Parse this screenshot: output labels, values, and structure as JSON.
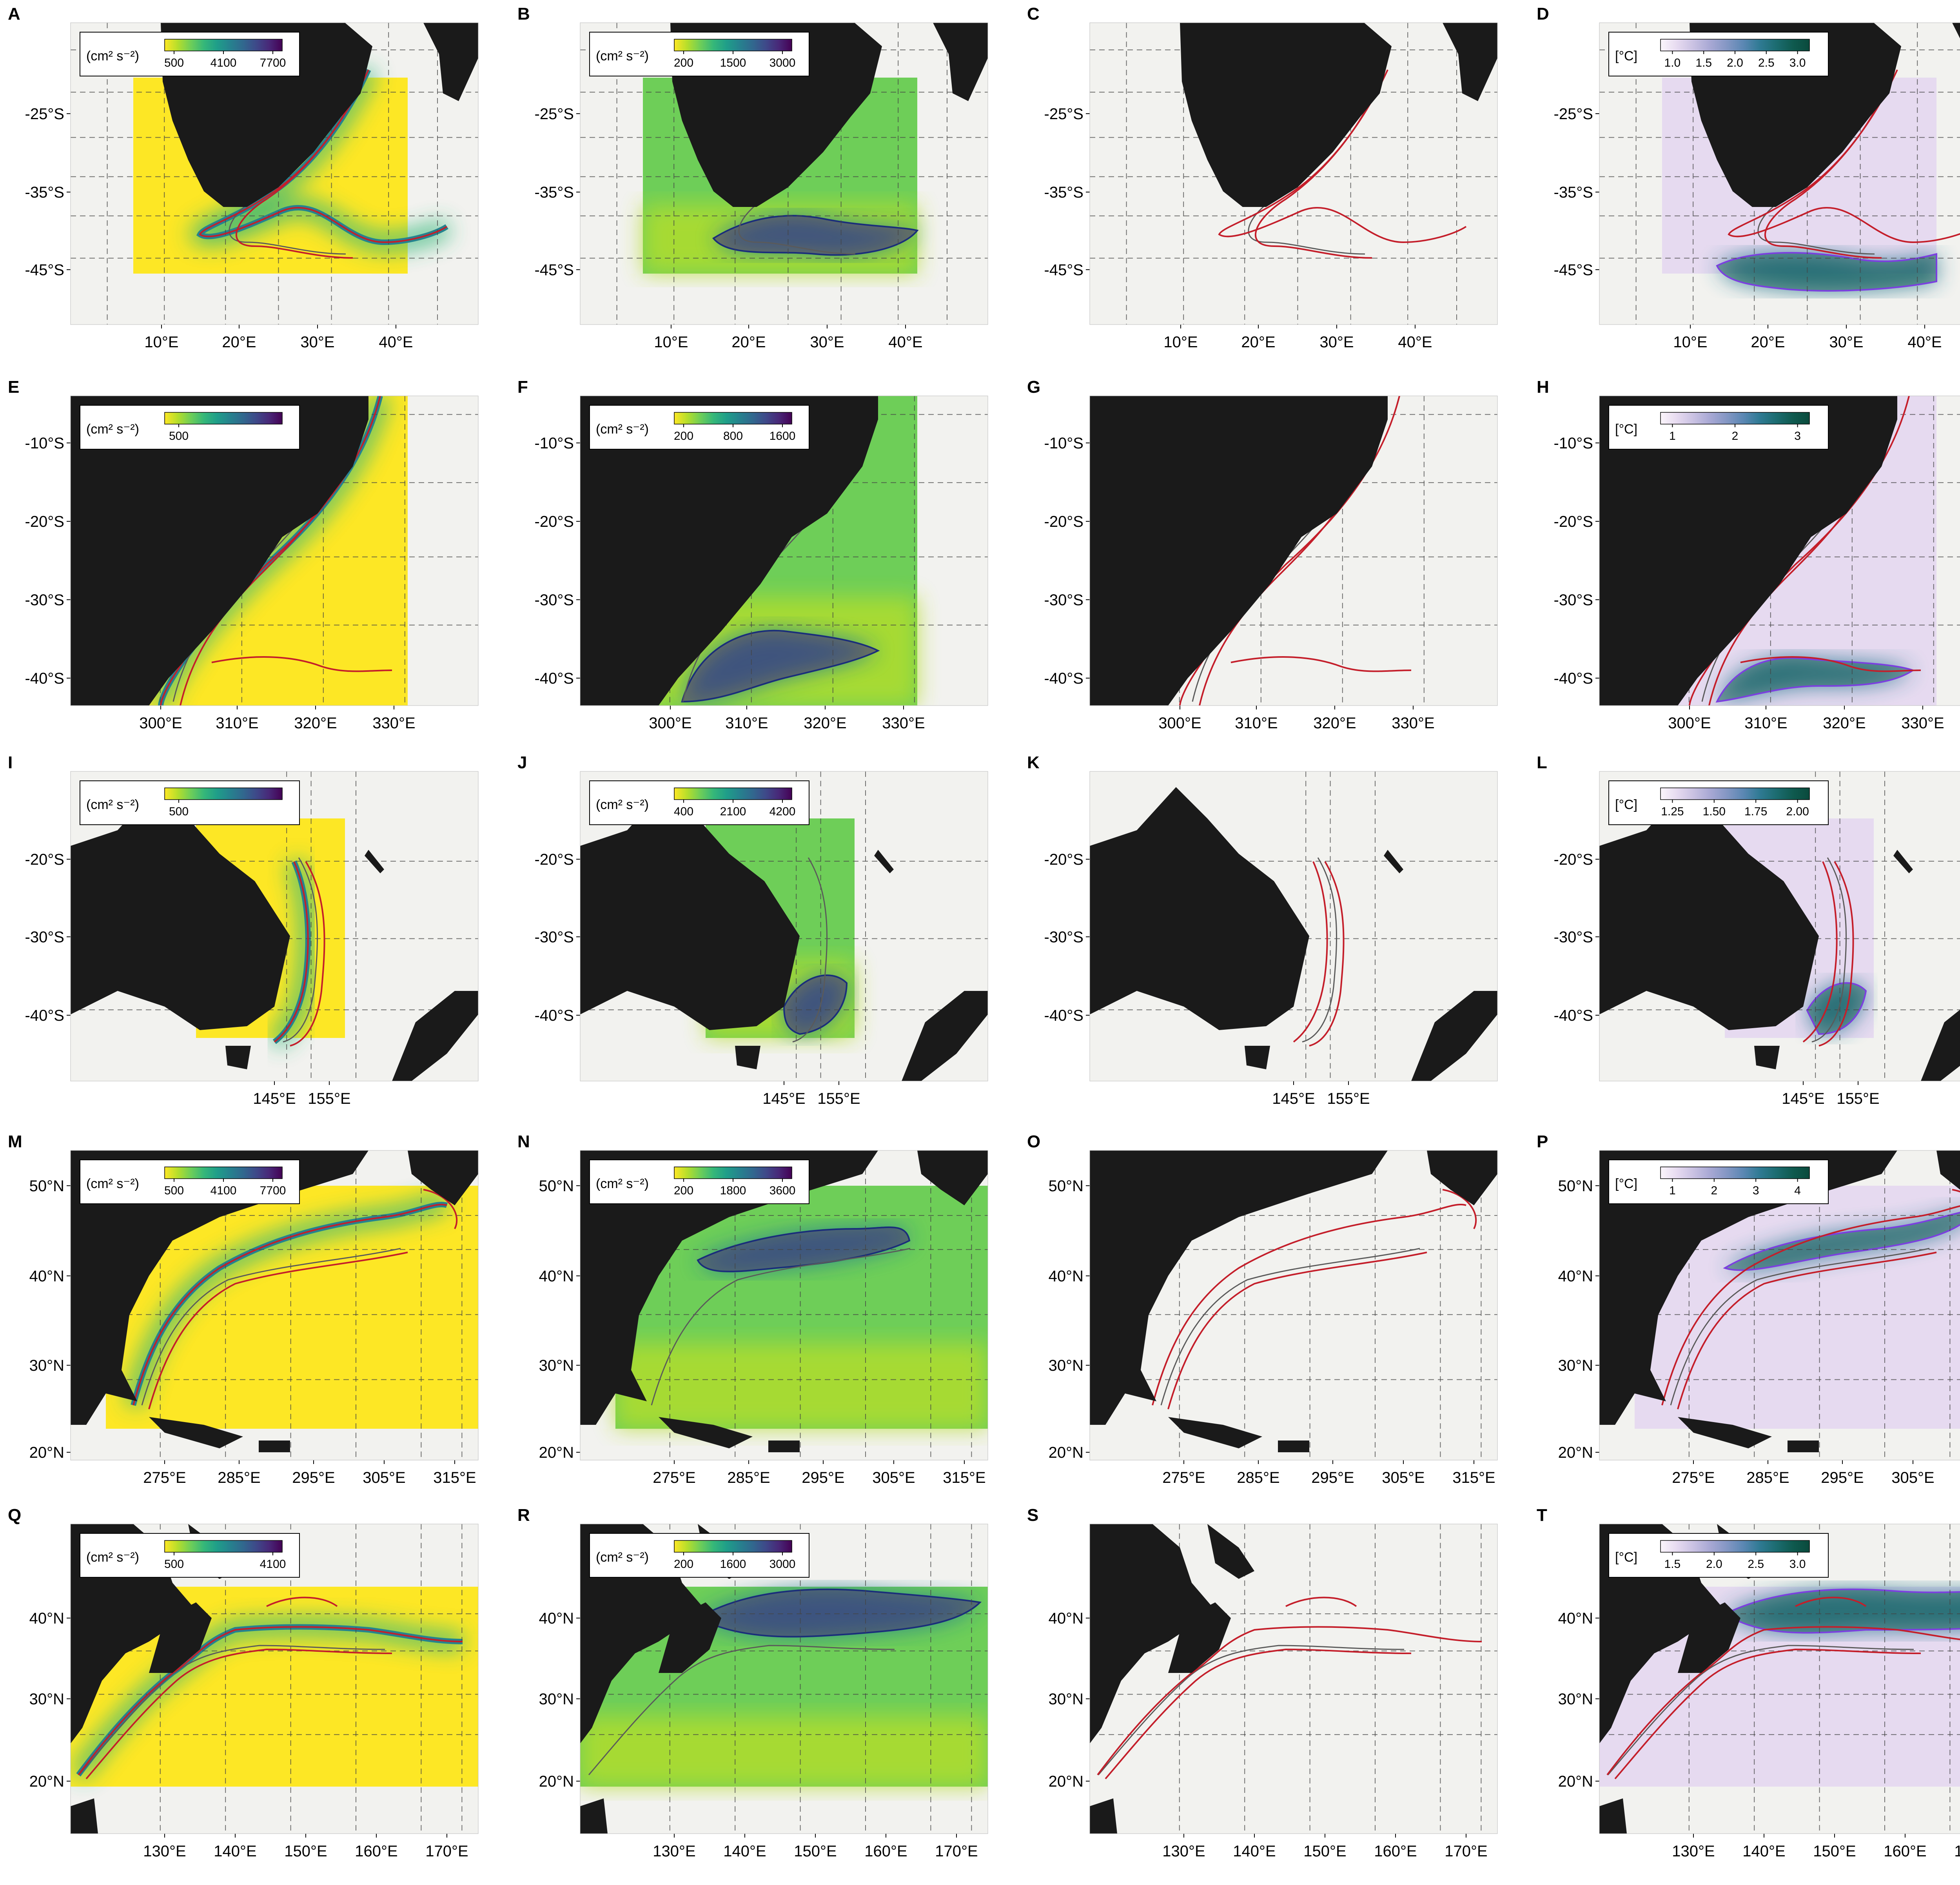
{
  "colors": {
    "background": "#f2f2ef",
    "land": "#1a1a1a",
    "contour_red": "#c41e2a",
    "contour_blue": "#1a2e7a",
    "contour_purple": "#7b3fe0",
    "contour_gray": "#5a5a5a",
    "viridis": [
      "#fde725",
      "#b5de2b",
      "#6ece58",
      "#35b779",
      "#1f9e89",
      "#26828e",
      "#31688e",
      "#3e4989",
      "#482878",
      "#440154"
    ],
    "purples_green": [
      "#fbf5fb",
      "#e6daf0",
      "#c9c1e2",
      "#a8a8d4",
      "#8497c4",
      "#5b87b3",
      "#2f7a93",
      "#1c6c70",
      "#0f5a4f",
      "#0a4a3c"
    ]
  },
  "regions": [
    {
      "id": "agulhas",
      "lat_ticks": [
        "-25°S",
        "-35°S",
        "-45°S"
      ],
      "lon_ticks": [
        "10°E",
        "20°E",
        "30°E",
        "40°E"
      ],
      "panels": [
        {
          "letter": "A",
          "variable": "eke",
          "legend_title": "(cm² s⁻²)",
          "legend_ticks": [
            "500",
            "4100",
            "7700"
          ]
        },
        {
          "letter": "B",
          "variable": "eke_blend",
          "legend_title": "(cm² s⁻²)",
          "legend_ticks": [
            "200",
            "1500",
            "3000"
          ]
        },
        {
          "letter": "C",
          "variable": "contours",
          "legend_title": "",
          "legend_ticks": []
        },
        {
          "letter": "D",
          "variable": "temp",
          "legend_title": "[°C]",
          "legend_ticks": [
            "1.0",
            "1.5",
            "2.0",
            "2.5",
            "3.0"
          ]
        }
      ]
    },
    {
      "id": "brazil-malvinas",
      "lat_ticks": [
        "-10°S",
        "-20°S",
        "-30°S",
        "-40°S"
      ],
      "lon_ticks": [
        "300°E",
        "310°E",
        "320°E",
        "330°E"
      ],
      "panels": [
        {
          "letter": "E",
          "variable": "eke",
          "legend_title": "(cm² s⁻²)",
          "legend_ticks": [
            "500"
          ]
        },
        {
          "letter": "F",
          "variable": "eke_blend",
          "legend_title": "(cm² s⁻²)",
          "legend_ticks": [
            "200",
            "800",
            "1600"
          ]
        },
        {
          "letter": "G",
          "variable": "contours",
          "legend_title": "",
          "legend_ticks": []
        },
        {
          "letter": "H",
          "variable": "temp",
          "legend_title": "[°C]",
          "legend_ticks": [
            "1",
            "2",
            "3"
          ]
        }
      ]
    },
    {
      "id": "east-australian",
      "lat_ticks": [
        "-20°S",
        "-30°S",
        "-40°S"
      ],
      "lon_ticks": [
        "145°E",
        "155°E"
      ],
      "panels": [
        {
          "letter": "I",
          "variable": "eke",
          "legend_title": "(cm² s⁻²)",
          "legend_ticks": [
            "500"
          ]
        },
        {
          "letter": "J",
          "variable": "eke_blend",
          "legend_title": "(cm² s⁻²)",
          "legend_ticks": [
            "400",
            "2100",
            "4200"
          ]
        },
        {
          "letter": "K",
          "variable": "contours",
          "legend_title": "",
          "legend_ticks": []
        },
        {
          "letter": "L",
          "variable": "temp",
          "legend_title": "[°C]",
          "legend_ticks": [
            "1.25",
            "1.50",
            "1.75",
            "2.00"
          ]
        }
      ]
    },
    {
      "id": "gulf-stream",
      "lat_ticks": [
        "50°N",
        "40°N",
        "30°N",
        "20°N"
      ],
      "lon_ticks": [
        "275°E",
        "285°E",
        "295°E",
        "305°E",
        "315°E"
      ],
      "panels": [
        {
          "letter": "M",
          "variable": "eke",
          "legend_title": "(cm² s⁻²)",
          "legend_ticks": [
            "500",
            "4100",
            "7700"
          ]
        },
        {
          "letter": "N",
          "variable": "eke_blend",
          "legend_title": "(cm² s⁻²)",
          "legend_ticks": [
            "200",
            "1800",
            "3600"
          ]
        },
        {
          "letter": "O",
          "variable": "contours",
          "legend_title": "",
          "legend_ticks": []
        },
        {
          "letter": "P",
          "variable": "temp",
          "legend_title": "[°C]",
          "legend_ticks": [
            "1",
            "2",
            "3",
            "4"
          ]
        }
      ]
    },
    {
      "id": "kuroshio",
      "lat_ticks": [
        "40°N",
        "30°N",
        "20°N"
      ],
      "lon_ticks": [
        "130°E",
        "140°E",
        "150°E",
        "160°E",
        "170°E"
      ],
      "panels": [
        {
          "letter": "Q",
          "variable": "eke",
          "legend_title": "(cm² s⁻²)",
          "legend_ticks": [
            "500",
            "4100"
          ]
        },
        {
          "letter": "R",
          "variable": "eke_blend",
          "legend_title": "(cm² s⁻²)",
          "legend_ticks": [
            "200",
            "1600",
            "3000"
          ]
        },
        {
          "letter": "S",
          "variable": "contours",
          "legend_title": "",
          "legend_ticks": []
        },
        {
          "letter": "T",
          "variable": "temp",
          "legend_title": "[°C]",
          "legend_ticks": [
            "1.5",
            "2.0",
            "2.5",
            "3.0"
          ]
        }
      ]
    }
  ]
}
